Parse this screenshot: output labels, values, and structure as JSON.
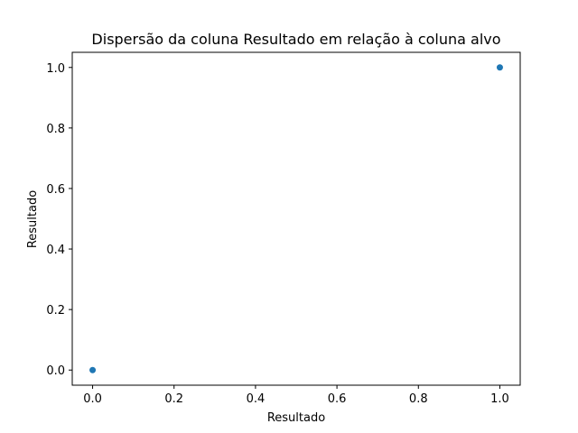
{
  "chart_data": {
    "type": "scatter",
    "title": "Dispersão da coluna Resultado em relação à coluna alvo",
    "xlabel": "Resultado",
    "ylabel": "Resultado",
    "xlim": [
      -0.05,
      1.05
    ],
    "ylim": [
      -0.05,
      1.05
    ],
    "xticks": [
      0.0,
      0.2,
      0.4,
      0.6,
      0.8,
      1.0
    ],
    "xtick_labels": [
      "0.0",
      "0.2",
      "0.4",
      "0.6",
      "0.8",
      "1.0"
    ],
    "yticks": [
      0.0,
      0.2,
      0.4,
      0.6,
      0.8,
      1.0
    ],
    "ytick_labels": [
      "0.0",
      "0.2",
      "0.4",
      "0.6",
      "0.8",
      "1.0"
    ],
    "grid": false,
    "legend": "none",
    "points": [
      {
        "x": 0.0,
        "y": 0.0
      },
      {
        "x": 1.0,
        "y": 1.0
      }
    ],
    "marker_color": "#1f77b4"
  }
}
